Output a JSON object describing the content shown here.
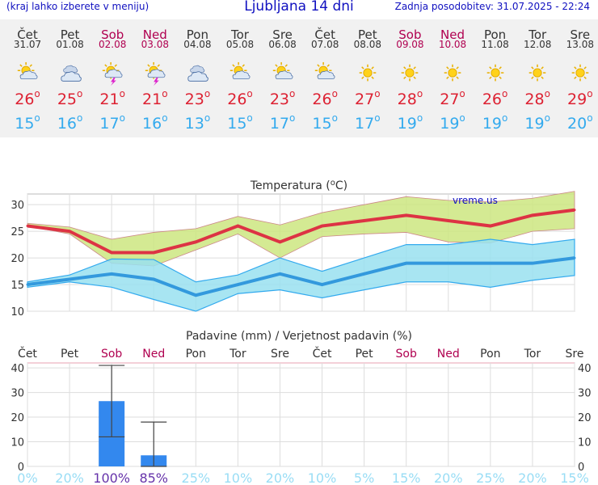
{
  "header": {
    "menu_hint": "(kraj lahko izberete v meniju)",
    "title": "Ljubljana 14 dni",
    "updated": "Zadnja posodobitev: 31.07.2025 - 22:24"
  },
  "forecast": [
    {
      "day": "Čet",
      "date": "31.07",
      "weekend": false,
      "icon": "sun-cloud-icon",
      "tmax": "26",
      "tmin": "15"
    },
    {
      "day": "Pet",
      "date": "01.08",
      "weekend": false,
      "icon": "cloudy-icon",
      "tmax": "25",
      "tmin": "16"
    },
    {
      "day": "Sob",
      "date": "02.08",
      "weekend": true,
      "icon": "thunderstorm-icon",
      "tmax": "21",
      "tmin": "17"
    },
    {
      "day": "Ned",
      "date": "03.08",
      "weekend": true,
      "icon": "thunderstorm-icon",
      "tmax": "21",
      "tmin": "16"
    },
    {
      "day": "Pon",
      "date": "04.08",
      "weekend": false,
      "icon": "cloudy-icon",
      "tmax": "23",
      "tmin": "13"
    },
    {
      "day": "Tor",
      "date": "05.08",
      "weekend": false,
      "icon": "sun-cloud-icon",
      "tmax": "26",
      "tmin": "15"
    },
    {
      "day": "Sre",
      "date": "06.08",
      "weekend": false,
      "icon": "sun-cloud-icon",
      "tmax": "23",
      "tmin": "17"
    },
    {
      "day": "Čet",
      "date": "07.08",
      "weekend": false,
      "icon": "sun-cloud-icon",
      "tmax": "26",
      "tmin": "15"
    },
    {
      "day": "Pet",
      "date": "08.08",
      "weekend": false,
      "icon": "sun-icon",
      "tmax": "27",
      "tmin": "17"
    },
    {
      "day": "Sob",
      "date": "09.08",
      "weekend": true,
      "icon": "sun-icon",
      "tmax": "28",
      "tmin": "19"
    },
    {
      "day": "Ned",
      "date": "10.08",
      "weekend": true,
      "icon": "sun-icon",
      "tmax": "27",
      "tmin": "19"
    },
    {
      "day": "Pon",
      "date": "11.08",
      "weekend": false,
      "icon": "sun-icon",
      "tmax": "26",
      "tmin": "19"
    },
    {
      "day": "Tor",
      "date": "12.08",
      "weekend": false,
      "icon": "sun-icon",
      "tmax": "28",
      "tmin": "19"
    },
    {
      "day": "Sre",
      "date": "13.08",
      "weekend": false,
      "icon": "sun-icon",
      "tmax": "29",
      "tmin": "20"
    }
  ],
  "colors": {
    "tmax": "#dd3344",
    "tmin": "#3399dd",
    "tmax_band": "#cce680",
    "tmin_band": "#99e0f0",
    "rain_bar": "#3388ee",
    "weekend": "#b00050",
    "prob": "#99ddf5",
    "prob_high": "#6633aa"
  },
  "chart_data": [
    {
      "type": "line",
      "title": "Temperatura (oC)",
      "watermark": "vreme.us",
      "categories": [
        "Čet",
        "Pet",
        "Sob",
        "Ned",
        "Pon",
        "Tor",
        "Sre",
        "Čet",
        "Pet",
        "Sob",
        "Ned",
        "Pon",
        "Tor",
        "Sre"
      ],
      "ylim": [
        10,
        32
      ],
      "yticks": [
        10,
        15,
        20,
        25,
        30
      ],
      "series": [
        {
          "values": [
            26,
            25,
            21,
            21,
            23,
            26,
            23,
            26,
            27,
            28,
            27,
            26,
            28,
            29
          ]
        },
        {
          "values": [
            15,
            16,
            17,
            16,
            13,
            15,
            17,
            15,
            17,
            19,
            19,
            19,
            19,
            20
          ]
        }
      ],
      "tmax_range_high": [
        26.5,
        25.8,
        23.5,
        24.8,
        25.5,
        27.8,
        26.2,
        28.5,
        30,
        31.5,
        30.8,
        30.5,
        31.2,
        32.5
      ],
      "tmax_range_low": [
        26,
        24.5,
        19,
        18.5,
        21.5,
        24.5,
        20,
        24,
        24.5,
        24.8,
        23,
        22.8,
        25,
        25.5
      ],
      "tmin_range_high": [
        15.5,
        16.8,
        19.8,
        19.7,
        15.5,
        16.8,
        20,
        17.5,
        20,
        22.5,
        22.5,
        23.5,
        22.5,
        23.5
      ],
      "tmin_range_low": [
        14.5,
        15.5,
        14.5,
        12.2,
        10,
        13.3,
        14,
        12.5,
        14,
        15.5,
        15.5,
        14.5,
        15.8,
        16.7
      ]
    },
    {
      "type": "bar",
      "title": "Padavine (mm) / Verjetnost padavin (%)",
      "categories": [
        "Čet",
        "Pet",
        "Sob",
        "Ned",
        "Pon",
        "Tor",
        "Sre",
        "Čet",
        "Pet",
        "Sob",
        "Ned",
        "Pon",
        "Tor",
        "Sre"
      ],
      "ylim": [
        0,
        42
      ],
      "yticks": [
        0,
        10,
        20,
        30,
        40
      ],
      "values": [
        0,
        0,
        26.5,
        4.5,
        0,
        0,
        0,
        0,
        0,
        0,
        0,
        0,
        0,
        0
      ],
      "error_high": [
        0,
        0,
        41,
        18,
        0,
        0,
        0,
        0,
        0,
        0,
        0,
        0,
        0,
        0
      ],
      "error_low": [
        0,
        0,
        12,
        0,
        0,
        0,
        0,
        0,
        0,
        0,
        0,
        0,
        0,
        0
      ],
      "probability": [
        "0%",
        "20%",
        "100%",
        "85%",
        "25%",
        "10%",
        "20%",
        "10%",
        "5%",
        "15%",
        "20%",
        "25%",
        "20%",
        "15%"
      ]
    }
  ]
}
